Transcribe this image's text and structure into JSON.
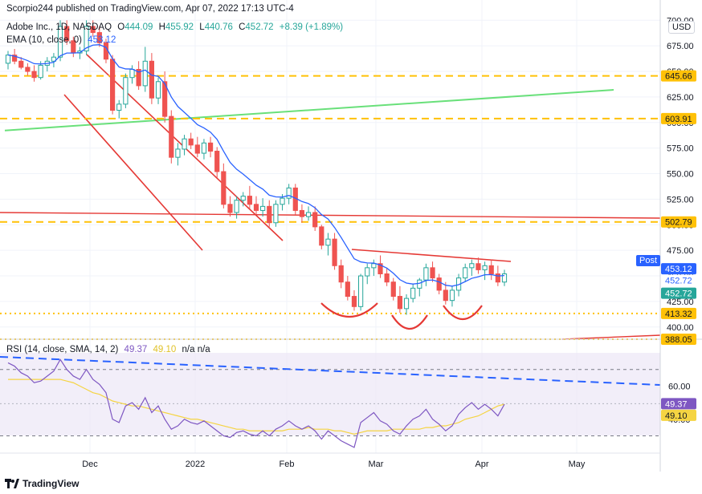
{
  "header": {
    "published": "Scorpio244 published on TradingView.com, Apr 07, 2022 17:13 UTC-4",
    "symbol": "Adobe Inc., 1D, NASDAQ",
    "ohlc": {
      "o_label": "O",
      "o": "444.09",
      "h_label": "H",
      "h": "455.92",
      "l_label": "L",
      "l": "440.76",
      "c_label": "C",
      "c": "452.72",
      "change": "+8.39 (+1.89%)"
    },
    "ema_label": "EMA (10, close, 0)",
    "ema_value": "453.12",
    "rsi_label": "RSI (14, close, SMA, 14, 2)",
    "rsi_value": "49.37",
    "rsi_sma_value": "49.10",
    "rsi_na": "n/a  n/a"
  },
  "currency_button": "USD",
  "post_label": "Post",
  "footer": {
    "brand": "TradingView"
  },
  "colors": {
    "up": "#26a69a",
    "down": "#ef5350",
    "ema": "#2962ff",
    "rsi": "#7e57c2",
    "rsi_sma": "#f5d442",
    "orange": "#ffc107",
    "red_line": "#e53935",
    "green_line": "#69e07a",
    "blue_dash": "#2962ff"
  },
  "chart_data": {
    "type": "candlestick",
    "symbol": "ADBE",
    "x_tick_labels": [
      "Dec",
      "2022",
      "Feb",
      "Mar",
      "Apr",
      "May"
    ],
    "y_tick_labels": [
      "700.00",
      "675.00",
      "650.00",
      "625.00",
      "600.00",
      "575.00",
      "550.00",
      "525.00",
      "500.00",
      "475.00",
      "450.00",
      "425.00",
      "400.00"
    ],
    "price_ylim": [
      392,
      712
    ],
    "candles": [
      [
        658,
        670,
        652,
        666
      ],
      [
        666,
        672,
        657,
        660
      ],
      [
        660,
        664,
        652,
        654
      ],
      [
        654,
        658,
        646,
        650
      ],
      [
        650,
        656,
        640,
        644
      ],
      [
        644,
        660,
        642,
        656
      ],
      [
        656,
        664,
        650,
        660
      ],
      [
        660,
        668,
        654,
        664
      ],
      [
        664,
        700,
        660,
        694
      ],
      [
        694,
        700,
        676,
        680
      ],
      [
        680,
        684,
        664,
        668
      ],
      [
        668,
        674,
        662,
        670
      ],
      [
        670,
        700,
        666,
        694
      ],
      [
        694,
        700,
        684,
        688
      ],
      [
        688,
        694,
        674,
        678
      ],
      [
        678,
        682,
        658,
        662
      ],
      [
        662,
        666,
        608,
        612
      ],
      [
        612,
        622,
        604,
        618
      ],
      [
        618,
        648,
        614,
        644
      ],
      [
        644,
        656,
        638,
        652
      ],
      [
        652,
        660,
        632,
        636
      ],
      [
        636,
        674,
        630,
        660
      ],
      [
        660,
        668,
        618,
        624
      ],
      [
        624,
        644,
        618,
        640
      ],
      [
        640,
        650,
        600,
        606
      ],
      [
        606,
        612,
        560,
        566
      ],
      [
        566,
        580,
        558,
        574
      ],
      [
        574,
        588,
        568,
        584
      ],
      [
        584,
        590,
        574,
        578
      ],
      [
        578,
        586,
        566,
        570
      ],
      [
        570,
        584,
        564,
        580
      ],
      [
        580,
        586,
        566,
        572
      ],
      [
        572,
        576,
        546,
        552
      ],
      [
        552,
        560,
        516,
        520
      ],
      [
        520,
        528,
        508,
        512
      ],
      [
        512,
        528,
        506,
        524
      ],
      [
        524,
        532,
        518,
        528
      ],
      [
        528,
        538,
        516,
        520
      ],
      [
        520,
        528,
        510,
        514
      ],
      [
        514,
        526,
        508,
        518
      ],
      [
        518,
        524,
        498,
        502
      ],
      [
        502,
        524,
        498,
        520
      ],
      [
        520,
        530,
        514,
        526
      ],
      [
        526,
        540,
        520,
        536
      ],
      [
        536,
        540,
        510,
        514
      ],
      [
        514,
        520,
        502,
        508
      ],
      [
        508,
        518,
        504,
        512
      ],
      [
        512,
        518,
        494,
        498
      ],
      [
        498,
        500,
        476,
        480
      ],
      [
        480,
        492,
        470,
        486
      ],
      [
        486,
        492,
        456,
        460
      ],
      [
        460,
        466,
        438,
        444
      ],
      [
        444,
        450,
        426,
        430
      ],
      [
        430,
        436,
        416,
        420
      ],
      [
        420,
        452,
        416,
        450
      ],
      [
        450,
        462,
        442,
        458
      ],
      [
        458,
        466,
        450,
        462
      ],
      [
        462,
        470,
        448,
        452
      ],
      [
        452,
        458,
        440,
        444
      ],
      [
        444,
        448,
        426,
        430
      ],
      [
        430,
        440,
        414,
        418
      ],
      [
        418,
        432,
        412,
        428
      ],
      [
        428,
        442,
        424,
        438
      ],
      [
        438,
        448,
        430,
        446
      ],
      [
        446,
        462,
        440,
        458
      ],
      [
        458,
        464,
        444,
        448
      ],
      [
        448,
        452,
        432,
        436
      ],
      [
        436,
        444,
        422,
        426
      ],
      [
        426,
        440,
        420,
        436
      ],
      [
        436,
        452,
        430,
        448
      ],
      [
        448,
        462,
        444,
        458
      ],
      [
        458,
        466,
        450,
        462
      ],
      [
        462,
        468,
        452,
        456
      ],
      [
        456,
        464,
        446,
        460
      ],
      [
        460,
        466,
        446,
        452
      ],
      [
        452,
        460,
        440,
        444
      ],
      [
        444,
        456,
        440,
        452
      ]
    ],
    "ema": {
      "name": "EMA (10, close, 0)",
      "last": 453.12
    },
    "horizontal_levels": [
      645.66,
      603.91,
      502.79,
      413.32,
      388.05
    ],
    "price_labels": [
      "453.12",
      "452.72",
      "452.72"
    ],
    "rsi": {
      "name": "RSI (14, close, SMA, 14, 2)",
      "ylim": [
        22,
        80
      ],
      "y_tick_labels": [
        "60.00",
        "40.00"
      ],
      "levels": [
        70,
        30
      ],
      "values": [
        74,
        72,
        68,
        66,
        62,
        63,
        66,
        69,
        76,
        70,
        66,
        64,
        70,
        64,
        61,
        56,
        40,
        38,
        48,
        50,
        46,
        53,
        44,
        48,
        40,
        34,
        36,
        40,
        38,
        37,
        39,
        36,
        33,
        30,
        29,
        32,
        33,
        31,
        30,
        33,
        30,
        34,
        36,
        39,
        36,
        34,
        36,
        33,
        28,
        33,
        30,
        27,
        25,
        23,
        38,
        41,
        44,
        39,
        37,
        33,
        31,
        36,
        40,
        42,
        46,
        40,
        37,
        33,
        36,
        43,
        47,
        50,
        46,
        49,
        46,
        42,
        49
      ],
      "sma": [
        64,
        64,
        64,
        64,
        64,
        64,
        64,
        64,
        64,
        63,
        62,
        60,
        58,
        56,
        55,
        53,
        51,
        50,
        49,
        48,
        48,
        47,
        46,
        45,
        44,
        43,
        42,
        41,
        40,
        40,
        39,
        38,
        37,
        36,
        35,
        34,
        34,
        33,
        33,
        33,
        33,
        33,
        33,
        34,
        34,
        34,
        35,
        34,
        34,
        34,
        33,
        33,
        32,
        31,
        32,
        33,
        33,
        33,
        33,
        34,
        34,
        34,
        34,
        34,
        35,
        35,
        36,
        36,
        37,
        38,
        40,
        41,
        42,
        44,
        46,
        48,
        49
      ]
    }
  }
}
